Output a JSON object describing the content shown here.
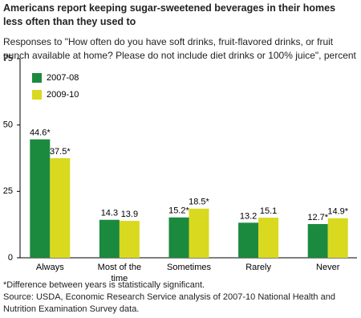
{
  "chart_data": {
    "type": "bar",
    "title": "Americans report keeping sugar-sweetened beverages in their homes less often than they used to",
    "subtitle": "Responses to \"How often do you have soft drinks, fruit-flavored drinks, or fruit punch available at home? Please do not include diet drinks or 100% juice\", percent",
    "categories": [
      "Always",
      "Most of the time",
      "Sometimes",
      "Rarely",
      "Never"
    ],
    "series": [
      {
        "name": "2007-08",
        "color": "#1b8a3e",
        "values": [
          44.6,
          14.3,
          15.2,
          13.2,
          12.7
        ],
        "value_labels": [
          "44.6*",
          "14.3",
          "15.2*",
          "13.2",
          "12.7*"
        ]
      },
      {
        "name": "2009-10",
        "color": "#d9d91f",
        "values": [
          37.5,
          13.9,
          18.5,
          15.1,
          14.9
        ],
        "value_labels": [
          "37.5*",
          "13.9",
          "18.5*",
          "15.1",
          "14.9*"
        ]
      }
    ],
    "ylim": [
      0,
      75
    ],
    "yticks": [
      0,
      25,
      50,
      75
    ],
    "grid": false,
    "legend": "upper left",
    "footnote": "*Difference between years is statistically significant.",
    "source": "Source: USDA, Economic Research Service analysis of 2007-10 National Health and Nutrition Examination Survey data."
  }
}
